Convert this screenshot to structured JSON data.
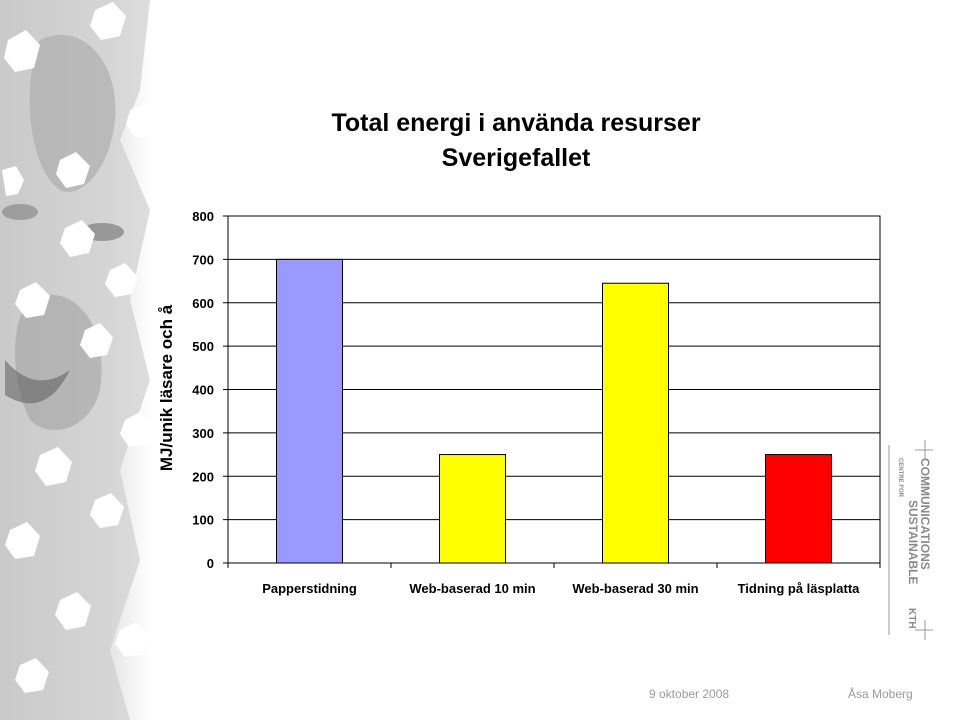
{
  "footer": {
    "date": "9 oktober 2008",
    "author": "Åsa Moberg"
  },
  "logo": {
    "line_small": "CENTRE FOR",
    "line1": "SUSTAINABLE",
    "line2": "COMMUNICATIONS",
    "line3": "KTH"
  },
  "colors": {
    "bar_blue": "#9999ff",
    "bar_yellow": "#ffff00",
    "bar_red": "#ff0000",
    "gridline": "#000000",
    "footer_text": "#9a9a9a"
  },
  "chart_data": {
    "type": "bar",
    "title": "Total energi i använda resurser",
    "subtitle": "Sverigefallet",
    "ylabel": "MJ/unik läsare och å",
    "xlabel": "",
    "categories": [
      "Papperstidning",
      "Web-baserad 10 min",
      "Web-baserad 30 min",
      "Tidning på läsplatta"
    ],
    "values": [
      700,
      250,
      645,
      250
    ],
    "bar_colors": [
      "#9999ff",
      "#ffff00",
      "#ffff00",
      "#ff0000"
    ],
    "ylim": [
      0,
      800
    ],
    "yticks": [
      "0",
      "100",
      "200",
      "300",
      "400",
      "500",
      "600",
      "700",
      "800"
    ],
    "grid": true,
    "legend": "none"
  }
}
